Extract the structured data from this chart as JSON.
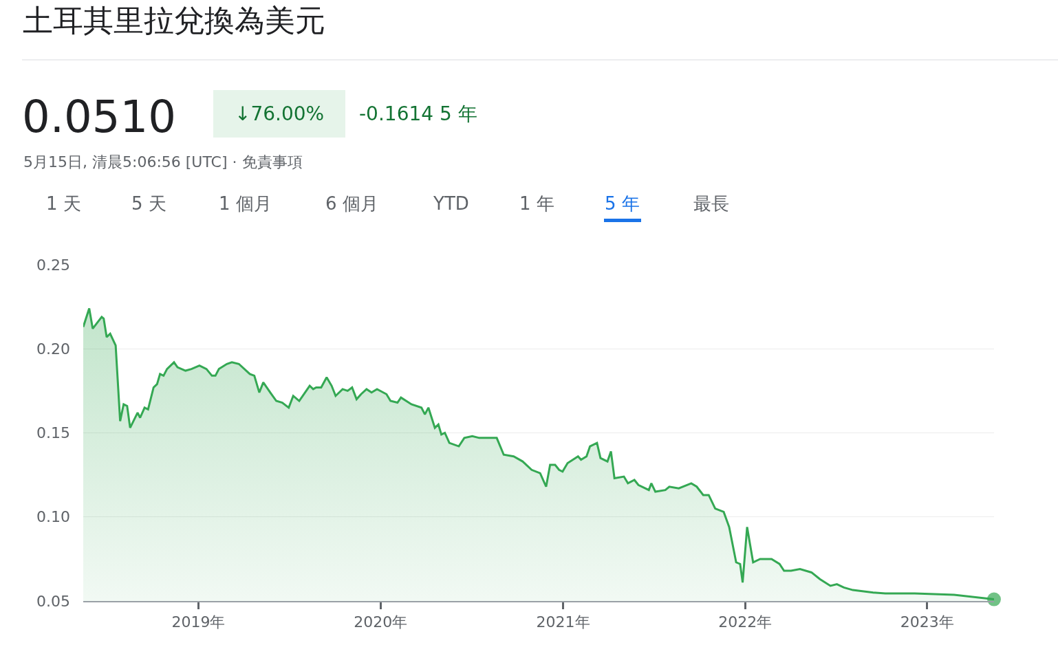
{
  "chart_data": {
    "type": "area",
    "title": "土耳其里拉兌換為美元",
    "annotations": [
      "0.0510",
      "↓76.00%",
      "-0.1614 5 年",
      "5月15日, 清晨5:06:56 [UTC] · 免責事項",
      "1 天",
      "5 天",
      "1 個月",
      "6 個月",
      "YTD",
      "1 年",
      "5 年",
      "最長"
    ],
    "x": [
      "2018-05-15",
      "2018-05-27",
      "2018-06-03",
      "2018-06-21",
      "2018-06-25",
      "2018-07-01",
      "2018-07-08",
      "2018-07-19",
      "2018-07-28",
      "2018-08-04",
      "2018-08-11",
      "2018-08-17",
      "2018-09-01",
      "2018-09-06",
      "2018-09-15",
      "2018-09-22",
      "2018-10-03",
      "2018-10-10",
      "2018-10-16",
      "2018-10-23",
      "2018-10-30",
      "2018-11-13",
      "2018-11-20",
      "2018-12-06",
      "2018-12-18",
      "2019-01-03",
      "2019-01-17",
      "2019-01-28",
      "2019-02-04",
      "2019-02-11",
      "2019-02-27",
      "2019-03-09",
      "2019-03-23",
      "2019-04-14",
      "2019-04-23",
      "2019-05-03",
      "2019-05-11",
      "2019-05-25",
      "2019-06-06",
      "2019-06-18",
      "2019-07-01",
      "2019-07-10",
      "2019-07-22",
      "2019-08-12",
      "2019-08-19",
      "2019-08-25",
      "2019-09-04",
      "2019-09-15",
      "2019-09-25",
      "2019-10-03",
      "2019-10-17",
      "2019-10-27",
      "2019-11-05",
      "2019-11-14",
      "2019-11-23",
      "2019-12-04",
      "2019-12-14",
      "2019-12-25",
      "2020-01-13",
      "2020-01-21",
      "2020-02-04",
      "2020-02-11",
      "2020-03-03",
      "2020-03-23",
      "2020-03-30",
      "2020-04-06",
      "2020-04-19",
      "2020-04-26",
      "2020-05-02",
      "2020-05-09",
      "2020-05-18",
      "2020-06-06",
      "2020-06-17",
      "2020-07-03",
      "2020-07-17",
      "2020-08-21",
      "2020-09-04",
      "2020-09-24",
      "2020-10-12",
      "2020-10-30",
      "2020-11-16",
      "2020-11-28",
      "2020-12-06",
      "2020-12-16",
      "2020-12-24",
      "2020-12-31",
      "2021-01-10",
      "2021-01-31",
      "2021-02-06",
      "2021-02-17",
      "2021-02-24",
      "2021-03-10",
      "2021-03-17",
      "2021-03-31",
      "2021-04-07",
      "2021-04-14",
      "2021-05-03",
      "2021-05-11",
      "2021-05-24",
      "2021-06-01",
      "2021-06-22",
      "2021-06-27",
      "2021-07-05",
      "2021-07-25",
      "2021-08-02",
      "2021-08-21",
      "2021-09-15",
      "2021-09-26",
      "2021-10-09",
      "2021-10-20",
      "2021-11-02",
      "2021-11-19",
      "2021-11-30",
      "2021-12-14",
      "2021-12-22",
      "2021-12-27",
      "2022-01-05",
      "2022-01-17",
      "2022-01-31",
      "2022-02-23",
      "2022-03-11",
      "2022-03-20",
      "2022-04-03",
      "2022-04-21",
      "2022-05-14",
      "2022-05-31",
      "2022-06-21",
      "2022-07-04",
      "2022-07-18",
      "2022-08-05",
      "2022-09-15",
      "2022-10-09",
      "2022-12-07",
      "2023-02-24",
      "2023-05-15"
    ],
    "series": [
      {
        "color": "#34a853",
        "values": [
          0.213,
          0.224,
          0.212,
          0.219,
          0.218,
          0.207,
          0.209,
          0.202,
          0.157,
          0.167,
          0.166,
          0.153,
          0.162,
          0.159,
          0.165,
          0.164,
          0.177,
          0.179,
          0.185,
          0.184,
          0.188,
          0.192,
          0.189,
          0.187,
          0.188,
          0.19,
          0.188,
          0.184,
          0.184,
          0.188,
          0.191,
          0.192,
          0.191,
          0.185,
          0.184,
          0.174,
          0.18,
          0.174,
          0.169,
          0.168,
          0.165,
          0.172,
          0.169,
          0.178,
          0.176,
          0.177,
          0.177,
          0.183,
          0.178,
          0.172,
          0.176,
          0.175,
          0.177,
          0.17,
          0.173,
          0.176,
          0.174,
          0.176,
          0.173,
          0.169,
          0.168,
          0.171,
          0.167,
          0.165,
          0.161,
          0.165,
          0.153,
          0.155,
          0.149,
          0.15,
          0.144,
          0.142,
          0.147,
          0.148,
          0.147,
          0.147,
          0.137,
          0.136,
          0.133,
          0.128,
          0.126,
          0.118,
          0.131,
          0.131,
          0.128,
          0.127,
          0.132,
          0.136,
          0.134,
          0.136,
          0.142,
          0.144,
          0.135,
          0.133,
          0.139,
          0.123,
          0.124,
          0.12,
          0.122,
          0.119,
          0.116,
          0.12,
          0.115,
          0.116,
          0.118,
          0.117,
          0.12,
          0.118,
          0.113,
          0.113,
          0.105,
          0.103,
          0.094,
          0.073,
          0.072,
          0.061,
          0.094,
          0.073,
          0.075,
          0.075,
          0.072,
          0.068,
          0.068,
          0.069,
          0.067,
          0.063,
          0.059,
          0.06,
          0.058,
          0.0565,
          0.055,
          0.0545,
          0.0545,
          0.0537,
          0.051
        ]
      }
    ],
    "xlim": [
      "2018-05-15",
      "2023-05-15"
    ],
    "xticks": [
      {
        "value": "2019-01-01",
        "label": "2019年"
      },
      {
        "value": "2020-01-01",
        "label": "2020年"
      },
      {
        "value": "2021-01-01",
        "label": "2021年"
      },
      {
        "value": "2022-01-01",
        "label": "2022年"
      },
      {
        "value": "2023-01-01",
        "label": "2023年"
      }
    ],
    "ylim": [
      0.05,
      0.25
    ],
    "yticks": [
      {
        "value": 0.05,
        "label": "0.05"
      },
      {
        "value": 0.1,
        "label": "0.10"
      },
      {
        "value": 0.15,
        "label": "0.15"
      },
      {
        "value": 0.2,
        "label": "0.20"
      },
      {
        "value": 0.25,
        "label": "0.25"
      }
    ],
    "grid": "y"
  }
}
